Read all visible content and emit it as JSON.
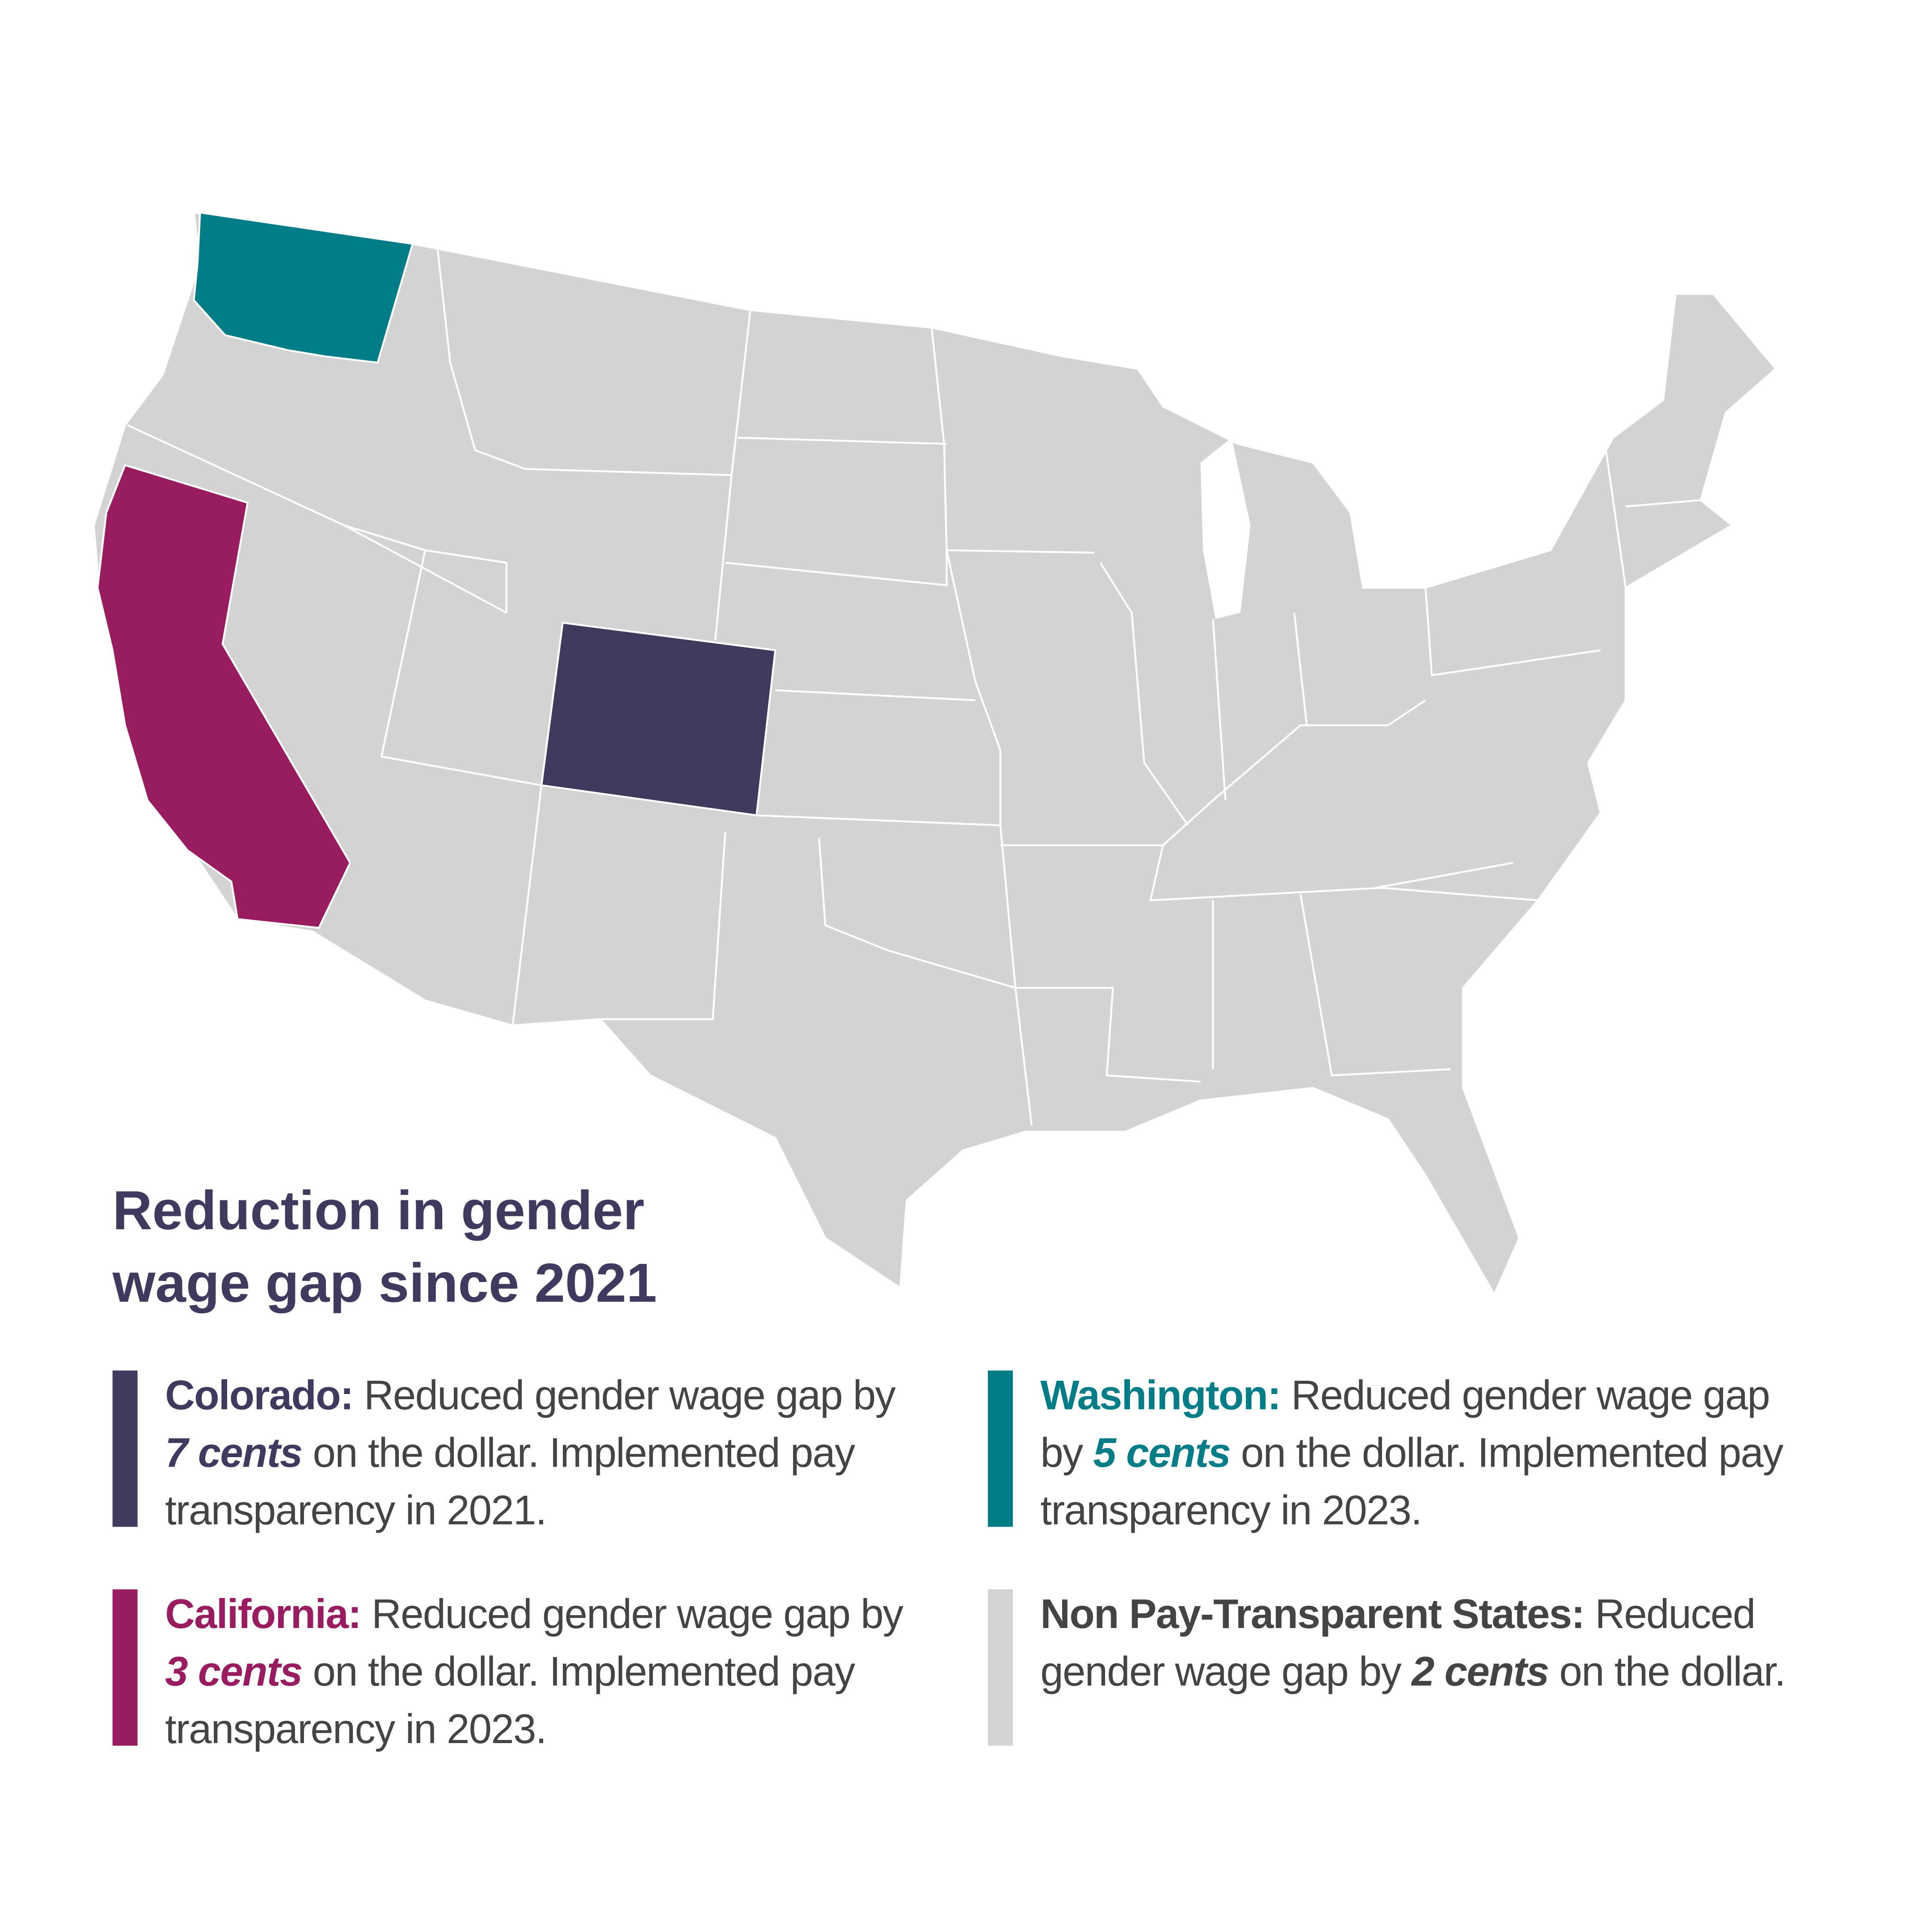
{
  "title": "Reduction in gender wage gap since 2021",
  "legend": [
    {
      "state": "Colorado:",
      "text_before": "Reduced gender wage gap by",
      "amount": "7 cents",
      "text_after": "on the dollar. Implemented pay transparency in 2021.",
      "color": "#41395e"
    },
    {
      "state": "Washington:",
      "text_before": "Reduced gender wage gap by",
      "amount": "5 cents",
      "text_after": "on the dollar. Implemented pay transparency in 2023.",
      "color": "#007d87"
    },
    {
      "state": "California:",
      "text_before": "Reduced gender wage gap by",
      "amount": "3 cents",
      "text_after": "on the dollar. Implemented pay transparency in 2023.",
      "color": "#9a1c60"
    },
    {
      "state": "Non Pay-Transparent States:",
      "text_before": "Reduced gender wage gap by",
      "amount": "2 cents",
      "text_after": "on the dollar.",
      "color": "#d3d3d3",
      "label_color": "#444444"
    }
  ]
}
